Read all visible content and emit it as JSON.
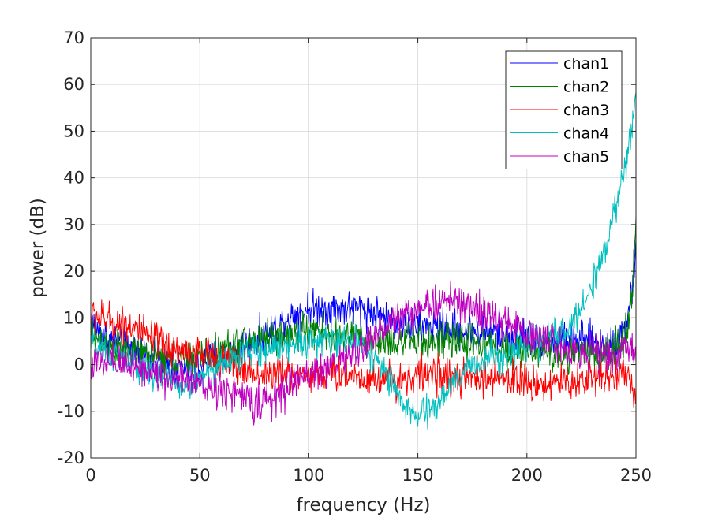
{
  "chart_data": {
    "type": "line",
    "xlabel": "frequency (Hz)",
    "ylabel": "power (dB)",
    "xlim": [
      0,
      250
    ],
    "ylim": [
      -20,
      70
    ],
    "xticks": [
      0,
      50,
      100,
      150,
      200,
      250
    ],
    "yticks": [
      -20,
      -10,
      0,
      10,
      20,
      30,
      40,
      50,
      60,
      70
    ],
    "xtick_labels": [
      "0",
      "50",
      "100",
      "150",
      "200",
      "250"
    ],
    "ytick_labels": [
      "-20",
      "-10",
      "0",
      "10",
      "20",
      "30",
      "40",
      "50",
      "60",
      "70"
    ],
    "grid": true,
    "legend_position": "top-right",
    "series": [
      {
        "name": "chan1",
        "color": "#0000ff",
        "x": [
          0,
          5,
          10,
          15,
          20,
          25,
          30,
          35,
          40,
          45,
          50,
          55,
          60,
          65,
          70,
          75,
          80,
          85,
          90,
          95,
          100,
          105,
          110,
          115,
          120,
          125,
          130,
          135,
          140,
          145,
          150,
          155,
          160,
          165,
          170,
          175,
          180,
          185,
          190,
          195,
          200,
          205,
          210,
          215,
          220,
          225,
          230,
          235,
          240,
          245,
          248,
          250
        ],
        "y": [
          9,
          7,
          5,
          4,
          3,
          2,
          1,
          0,
          -1,
          -1,
          0,
          1,
          2,
          3,
          4,
          5,
          6,
          8,
          10,
          11,
          12,
          12,
          12,
          12,
          12,
          12,
          11,
          10,
          9,
          9,
          8,
          8,
          8,
          8,
          7,
          7,
          7,
          7,
          6,
          6,
          6,
          5,
          5,
          5,
          5,
          5,
          5,
          4,
          5,
          8,
          15,
          25
        ],
        "noise": 3
      },
      {
        "name": "chan2",
        "color": "#008000",
        "x": [
          0,
          5,
          10,
          15,
          20,
          25,
          30,
          35,
          40,
          45,
          50,
          55,
          60,
          65,
          70,
          75,
          80,
          85,
          90,
          95,
          100,
          105,
          110,
          115,
          120,
          125,
          130,
          135,
          140,
          145,
          150,
          155,
          160,
          165,
          170,
          175,
          180,
          185,
          190,
          195,
          200,
          205,
          210,
          215,
          220,
          225,
          230,
          235,
          240,
          245,
          248,
          250
        ],
        "y": [
          6,
          5,
          4,
          3,
          2,
          2,
          2,
          1,
          1,
          1,
          2,
          2,
          3,
          4,
          5,
          5,
          6,
          6,
          6,
          7,
          7,
          7,
          6,
          6,
          6,
          5,
          5,
          5,
          5,
          5,
          5,
          5,
          5,
          5,
          5,
          5,
          4,
          4,
          3,
          3,
          3,
          3,
          2,
          2,
          2,
          2,
          2,
          2,
          3,
          6,
          14,
          29
        ],
        "noise": 3
      },
      {
        "name": "chan3",
        "color": "#ff0000",
        "x": [
          0,
          5,
          10,
          15,
          20,
          25,
          30,
          35,
          40,
          45,
          50,
          55,
          60,
          65,
          70,
          75,
          80,
          85,
          90,
          95,
          100,
          105,
          110,
          115,
          120,
          125,
          130,
          135,
          140,
          145,
          150,
          155,
          160,
          165,
          170,
          175,
          180,
          185,
          190,
          195,
          200,
          205,
          210,
          215,
          220,
          225,
          230,
          235,
          240,
          245,
          248,
          250
        ],
        "y": [
          11,
          10,
          9,
          9,
          8,
          6,
          5,
          4,
          3,
          3,
          2,
          2,
          1,
          0,
          -1,
          -2,
          -2,
          -2,
          -2,
          -2,
          -2,
          -2,
          -2,
          -2,
          -2,
          -3,
          -3,
          -3,
          -3,
          -3,
          -2,
          -2,
          -2,
          -3,
          -3,
          -3,
          -3,
          -3,
          -3,
          -3,
          -4,
          -4,
          -4,
          -4,
          -4,
          -3,
          -3,
          -2,
          -2,
          -2,
          -3,
          -10
        ],
        "noise": 3
      },
      {
        "name": "chan4",
        "color": "#00bfbf",
        "x": [
          0,
          5,
          10,
          15,
          20,
          25,
          30,
          35,
          40,
          45,
          50,
          55,
          60,
          65,
          70,
          75,
          80,
          85,
          90,
          95,
          100,
          105,
          110,
          115,
          120,
          125,
          130,
          135,
          140,
          145,
          150,
          155,
          160,
          165,
          170,
          175,
          180,
          185,
          190,
          195,
          200,
          205,
          210,
          215,
          220,
          225,
          230,
          235,
          240,
          245,
          248,
          250
        ],
        "y": [
          5,
          3,
          2,
          1,
          0,
          -1,
          -2,
          -3,
          -4,
          -5,
          -3,
          -1,
          0,
          1,
          2,
          3,
          3,
          4,
          4,
          5,
          5,
          5,
          5,
          5,
          5,
          4,
          2,
          -2,
          -6,
          -10,
          -11,
          -10,
          -8,
          -5,
          -2,
          0,
          1,
          2,
          2,
          3,
          4,
          5,
          6,
          7,
          8,
          12,
          17,
          24,
          32,
          42,
          50,
          58
        ],
        "noise": 2.5
      },
      {
        "name": "chan5",
        "color": "#bf00bf",
        "x": [
          0,
          5,
          10,
          15,
          20,
          25,
          30,
          35,
          40,
          45,
          50,
          55,
          60,
          65,
          70,
          75,
          80,
          85,
          90,
          95,
          100,
          105,
          110,
          115,
          120,
          125,
          130,
          135,
          140,
          145,
          150,
          155,
          160,
          165,
          170,
          175,
          180,
          185,
          190,
          195,
          200,
          205,
          210,
          215,
          220,
          225,
          230,
          235,
          240,
          245,
          248,
          250
        ],
        "y": [
          0,
          0,
          0,
          0,
          0,
          -1,
          -2,
          -3,
          -3,
          -4,
          -4,
          -5,
          -5,
          -6,
          -7,
          -8,
          -8,
          -7,
          -5,
          -3,
          -2,
          -1,
          0,
          1,
          2,
          4,
          6,
          8,
          10,
          11,
          12,
          13,
          13,
          14,
          13,
          12,
          11,
          10,
          9,
          8,
          7,
          6,
          5,
          4,
          3,
          3,
          3,
          2,
          2,
          3,
          3,
          3
        ],
        "noise": 3
      }
    ]
  }
}
